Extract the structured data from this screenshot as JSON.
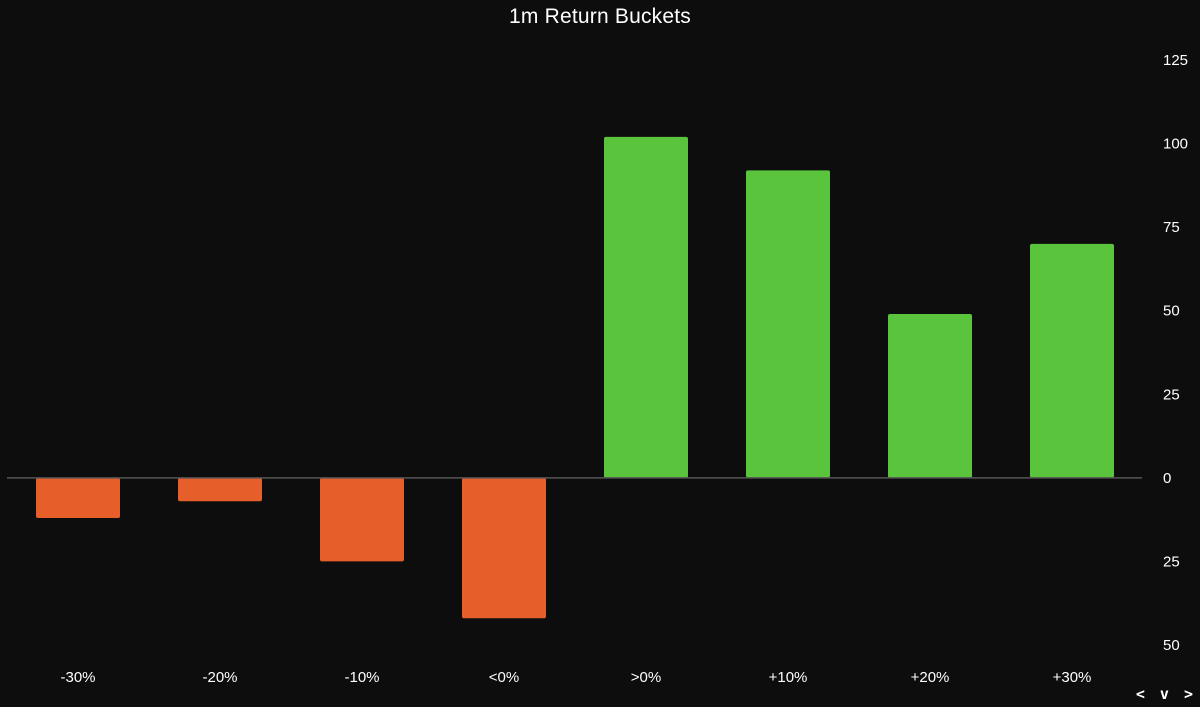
{
  "chart_data": {
    "type": "bar",
    "title": "1m Return Buckets",
    "xlabel": "",
    "ylabel": "",
    "categories": [
      "-30%",
      "-20%",
      "-10%",
      "<0%",
      ">0%",
      "+10%",
      "+20%",
      "+30%"
    ],
    "values": [
      -12,
      -7,
      -25,
      -42,
      102,
      92,
      49,
      70
    ],
    "ylim": [
      -50,
      125
    ],
    "yticks": [
      125,
      100,
      75,
      50,
      25,
      0,
      -25,
      -50
    ],
    "ytick_labels": [
      "125",
      "100",
      "75",
      "50",
      "25",
      "0",
      "25",
      "50"
    ],
    "y_axis_position": "right",
    "grid": false,
    "colors": {
      "positive": "#5ac43c",
      "negative": "#e65f2b",
      "background": "#0d0d0d",
      "zero_line": "#555555",
      "text": "#ffffff"
    }
  },
  "nav": {
    "label": "< v >"
  }
}
